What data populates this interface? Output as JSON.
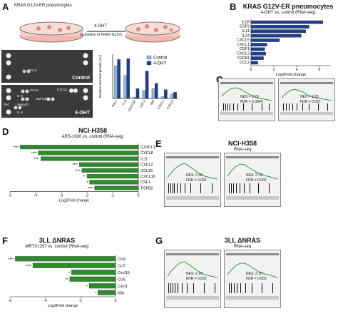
{
  "panels": {
    "A": {
      "label": "A",
      "top_label": "KRAS G12V-ER pneumocytes",
      "treatment_line1": "4-OHT",
      "treatment_line2": "(activation of KRAS G12V)",
      "blot1_label": "Control",
      "blot2_label": "4-OHT",
      "blot2_spots": [
        "CCL2",
        "GM-CSF",
        "CXCL1",
        "IL-8",
        "Serp-E1",
        "Ref",
        "IL-6"
      ],
      "blot1_spots": [
        "CCL2"
      ],
      "chart_ylabel": "Relative secreted protein (AU)"
    },
    "B": {
      "label": "B",
      "title": "KRAS G12V-ER pneumocytes",
      "subtitle": "4-OHT vs. control (RNA-seq)",
      "xlabel": "Log2Fold change"
    },
    "C": {
      "label": "C",
      "nes1": "NES = 2.79",
      "fdr1": "FDR = 0.0004",
      "nes2": "NES = 1.65",
      "fdr2": "FDR = 0.037"
    },
    "D": {
      "label": "D",
      "title": "NCI-H358",
      "subtitle": "ARS-1620 vs. control (RNA-seq)",
      "xlabel": "Log2Fold change"
    },
    "E": {
      "label": "E",
      "title": "NCI-H358",
      "subtitle": "RNA-seq",
      "nes1": "NES: 2.39",
      "fdr1": "FDR = 0.002",
      "nes2": "NES: 2.14",
      "fdr2": "FDR = 0.002"
    },
    "F": {
      "label": "F",
      "title": "3LL ΔNRAS",
      "subtitle": "MRTX1257 vs. control (RNA-seq)",
      "xlabel": "Log2Fold change"
    },
    "G": {
      "label": "G",
      "title": "3LL ΔNRAS",
      "subtitle": "RNA-seq",
      "nes1": "NES: 2.29",
      "fdr1": "FDR = 0.003",
      "nes2": "NES: 2.10",
      "fdr2": "FDR = 0.003"
    }
  },
  "chart_data": [
    {
      "type": "bar",
      "panel": "A",
      "categories": [
        "PAI-1",
        "IL-8",
        "GM-CSF",
        "CCL2",
        "MIF",
        "CXCL1",
        "CXCL5"
      ],
      "ylabel": "Relative secreted protein (AU)",
      "ylim": [
        0,
        1
      ],
      "series": [
        {
          "name": "Control",
          "values": [
            0.74,
            0.52,
            0.03,
            0.18,
            0.22,
            0.04,
            0.1
          ],
          "color": "#8fb8d8"
        },
        {
          "name": "4-OHT",
          "values": [
            0.88,
            0.9,
            0.22,
            0.62,
            0.34,
            0.2,
            0.14
          ],
          "color": "#1f3f8f"
        }
      ]
    },
    {
      "type": "bar",
      "panel": "B",
      "orientation": "horizontal",
      "categories": [
        "IL1B",
        "CSF2",
        "IL11",
        "IL24",
        "CXCL5",
        "CXCL1",
        "CSF1",
        "CXCL3",
        "TGFB1",
        "CCL2"
      ],
      "values": [
        6.3,
        5.1,
        4.8,
        4.4,
        2.5,
        1.4,
        1.2,
        1.3,
        1.1,
        0.6
      ],
      "significance": [
        "****",
        "****",
        "****",
        "****",
        "****",
        "**",
        "**",
        "**",
        "**",
        "*"
      ],
      "xlabel": "Log2Fold change",
      "xlim": [
        0,
        7
      ],
      "xticks": [
        0,
        2,
        4,
        6
      ],
      "color": "#1f3f8f"
    },
    {
      "type": "bar",
      "panel": "D",
      "orientation": "horizontal",
      "categories": [
        "CX3CL1",
        "CXCL8",
        "IL11",
        "CXCL2",
        "CCL26",
        "CXCL16",
        "CSF1",
        "TGFB2"
      ],
      "values": [
        -4.6,
        -3.9,
        -3.8,
        -2.3,
        -2.2,
        -2.0,
        -1.9,
        -1.7
      ],
      "significance": [
        "****",
        "****",
        "****",
        "****",
        "****",
        "**",
        "*",
        "****"
      ],
      "xlabel": "Log2Fold change",
      "xlim": [
        -5,
        0
      ],
      "xticks": [
        -5,
        -4,
        -3,
        -2,
        -1,
        0
      ],
      "color": "#2e8b2e"
    },
    {
      "type": "bar",
      "panel": "F",
      "orientation": "horizontal",
      "categories": [
        "Ccl2",
        "Ccl7",
        "Cxcl16",
        "Ccl5",
        "Cxcl1",
        "Il34"
      ],
      "values": [
        -5.7,
        -4.7,
        -2.5,
        -2.6,
        -1.5,
        -1.0
      ],
      "significance": [
        "****",
        "****",
        "*",
        "**",
        "*",
        "*"
      ],
      "xlabel": "Log2Fold change",
      "xlim": [
        -6,
        0
      ],
      "xticks": [
        -6,
        -4,
        -2,
        0
      ],
      "color": "#2e8b2e"
    }
  ]
}
